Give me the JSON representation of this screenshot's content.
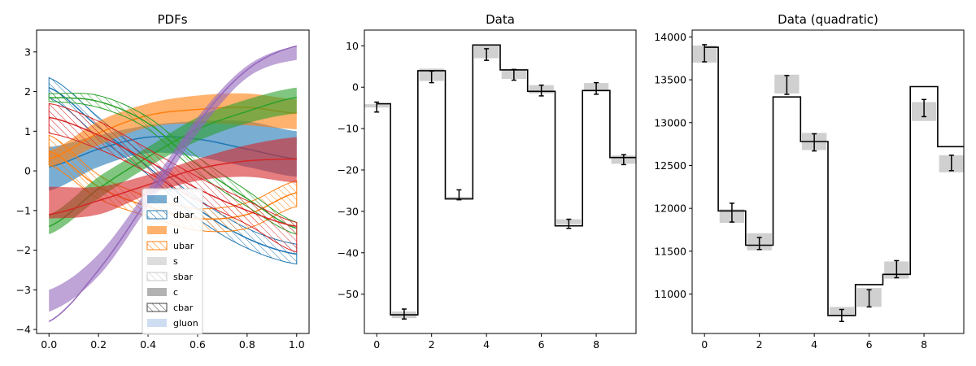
{
  "chart_data": [
    {
      "type": "area",
      "title": "PDFs",
      "xlabel": "",
      "ylabel": "",
      "xlim": [
        -0.05,
        1.05
      ],
      "ylim": [
        -4.1,
        3.55
      ],
      "xticks": [
        0.0,
        0.2,
        0.4,
        0.6,
        0.8,
        1.0
      ],
      "xtick_labels": [
        "0.0",
        "0.2",
        "0.4",
        "0.6",
        "0.8",
        "1.0"
      ],
      "yticks": [
        -4,
        -3,
        -2,
        -1,
        0,
        1,
        2,
        3
      ],
      "ytick_labels": [
        "−4",
        "−3",
        "−2",
        "−1",
        "0",
        "1",
        "2",
        "3"
      ],
      "legend_position": "bottom-center",
      "x": [
        0.0,
        0.2,
        0.4,
        0.6,
        0.8,
        1.0
      ],
      "series": [
        {
          "name": "d",
          "style": "filled",
          "color": "#1f77b4",
          "center": [
            0.1,
            0.55,
            0.85,
            0.8,
            0.55,
            0.3
          ],
          "upper": [
            0.6,
            0.9,
            1.15,
            1.25,
            1.25,
            1.0
          ],
          "lower": [
            -0.5,
            0.1,
            0.45,
            0.35,
            0.1,
            -0.15
          ]
        },
        {
          "name": "dbar",
          "style": "hatched",
          "color": "#1f77b4",
          "center": [
            2.1,
            1.1,
            0.1,
            -0.95,
            -1.7,
            -2.1
          ],
          "upper": [
            2.35,
            1.35,
            0.3,
            -0.7,
            -1.45,
            -1.85
          ],
          "lower": [
            1.85,
            0.85,
            -0.1,
            -1.2,
            -1.95,
            -2.35
          ]
        },
        {
          "name": "u",
          "style": "filled",
          "color": "#ff7f0e",
          "center": [
            0.3,
            0.95,
            1.4,
            1.55,
            1.6,
            1.45
          ],
          "upper": [
            0.5,
            1.25,
            1.7,
            1.9,
            1.95,
            1.8
          ],
          "lower": [
            0.1,
            0.65,
            1.1,
            1.2,
            1.15,
            1.05
          ]
        },
        {
          "name": "ubar",
          "style": "hatched",
          "color": "#ff7f0e",
          "center": [
            0.5,
            -0.4,
            -0.9,
            -1.2,
            -1.1,
            -0.55
          ],
          "upper": [
            0.9,
            -0.1,
            -0.65,
            -0.95,
            -0.8,
            -0.25
          ],
          "lower": [
            0.15,
            -0.7,
            -1.15,
            -1.5,
            -1.45,
            -0.9
          ]
        },
        {
          "name": "s",
          "style": "filled",
          "color": "#c7c7c7",
          "center": [],
          "upper": [],
          "lower": []
        },
        {
          "name": "sbar",
          "style": "hatched",
          "color": "#c7c7c7",
          "center": [],
          "upper": [],
          "lower": []
        },
        {
          "name": "c",
          "style": "filled",
          "color": "#7f7f7f",
          "center": [],
          "upper": [],
          "lower": []
        },
        {
          "name": "cbar",
          "style": "hatched",
          "color": "#404040",
          "center": [],
          "upper": [],
          "lower": []
        },
        {
          "name": "gluon",
          "style": "filled",
          "color": "#aec7e8",
          "center": [],
          "upper": [],
          "lower": []
        },
        {
          "name": "",
          "style": "filled",
          "color": "#2ca02c",
          "center": [
            -1.4,
            -0.45,
            0.35,
            1.05,
            1.5,
            1.85
          ],
          "upper": [
            -1.1,
            -0.15,
            0.6,
            1.35,
            1.8,
            2.1
          ],
          "lower": [
            -1.6,
            -0.7,
            0.1,
            0.75,
            1.2,
            1.45
          ]
        },
        {
          "name": "",
          "style": "hatched",
          "color": "#2ca02c",
          "center": [
            1.85,
            1.75,
            1.2,
            0.15,
            -0.7,
            -1.45
          ],
          "upper": [
            1.95,
            1.9,
            1.35,
            0.35,
            -0.5,
            -1.3
          ],
          "lower": [
            1.75,
            1.6,
            1.05,
            -0.05,
            -0.9,
            -1.6
          ]
        },
        {
          "name": "",
          "style": "filled",
          "color": "#d62728",
          "center": [
            -1.1,
            -0.75,
            -0.35,
            0.05,
            0.25,
            0.3
          ],
          "upper": [
            -0.4,
            -0.4,
            -0.1,
            0.3,
            0.65,
            0.85
          ],
          "lower": [
            -1.2,
            -1.1,
            -0.6,
            -0.25,
            -0.15,
            -0.3
          ]
        },
        {
          "name": "",
          "style": "hatched",
          "color": "#d62728",
          "center": [
            1.35,
            0.9,
            0.25,
            -0.45,
            -1.0,
            -1.4
          ],
          "upper": [
            1.7,
            1.25,
            0.55,
            -0.15,
            -0.75,
            -1.3
          ],
          "lower": [
            0.95,
            0.55,
            -0.05,
            -0.75,
            -1.35,
            -2.05
          ]
        },
        {
          "name": "",
          "style": "filled",
          "color": "#9467bd",
          "center": [
            -3.8,
            -2.5,
            -0.7,
            1.2,
            2.55,
            3.15
          ],
          "upper": [
            -3.0,
            -2.1,
            -0.45,
            1.35,
            2.65,
            3.15
          ],
          "lower": [
            -3.55,
            -2.65,
            -0.9,
            0.95,
            2.35,
            2.8
          ]
        }
      ]
    },
    {
      "type": "bar",
      "title": "Data",
      "xlabel": "",
      "ylabel": "",
      "xlim": [
        -0.45,
        9.45
      ],
      "ylim": [
        -59.5,
        13.8
      ],
      "xticks": [
        0,
        2,
        4,
        6,
        8
      ],
      "xtick_labels": [
        "0",
        "2",
        "4",
        "6",
        "8"
      ],
      "yticks": [
        -50,
        -40,
        -30,
        -20,
        -10,
        0,
        10
      ],
      "ytick_labels": [
        "−50",
        "−40",
        "−30",
        "−20",
        "−10",
        "0",
        "10"
      ],
      "x": [
        0,
        1,
        2,
        3,
        4,
        5,
        6,
        7,
        8,
        9
      ],
      "prediction": [
        -4,
        -55,
        4,
        -27,
        10.2,
        4.2,
        -1,
        -33.5,
        -0.8,
        -17
      ],
      "band_center": [
        -4.5,
        -55,
        3,
        -26.8,
        8.5,
        3,
        -0.5,
        -32.5,
        0,
        -17.5
      ],
      "band_halfwidth": [
        0.4,
        0.8,
        1.5,
        0.3,
        1.5,
        1.0,
        1.0,
        0.6,
        1.0,
        1.0
      ],
      "points": [
        -4.8,
        -54.8,
        2.5,
        -26,
        7.9,
        3,
        -0.8,
        -33,
        -0.3,
        -17.5
      ],
      "errors": [
        1.2,
        1.2,
        1.4,
        1.2,
        1.4,
        1.3,
        1.3,
        1.1,
        1.4,
        1.2
      ]
    },
    {
      "type": "bar",
      "title": "Data (quadratic)",
      "xlabel": "",
      "ylabel": "",
      "xlim": [
        -0.45,
        9.45
      ],
      "ylim": [
        10540,
        14080
      ],
      "xticks": [
        0,
        2,
        4,
        6,
        8
      ],
      "xtick_labels": [
        "0",
        "2",
        "4",
        "6",
        "8"
      ],
      "yticks": [
        11000,
        11500,
        12000,
        12500,
        13000,
        13500,
        14000
      ],
      "ytick_labels": [
        "11000",
        "11500",
        "12000",
        "12500",
        "13000",
        "13500",
        "14000"
      ],
      "x": [
        0,
        1,
        2,
        3,
        4,
        5,
        6,
        7,
        8,
        9
      ],
      "prediction": [
        13880,
        11970,
        11570,
        13300,
        12780,
        10750,
        11110,
        11230,
        13420,
        12720
      ],
      "band_center": [
        13800,
        11910,
        11610,
        13450,
        12780,
        10800,
        10960,
        11280,
        13130,
        12520
      ],
      "band_halfwidth": [
        100,
        80,
        100,
        110,
        100,
        50,
        110,
        100,
        110,
        100
      ],
      "points": [
        13810,
        11950,
        11590,
        13440,
        12770,
        10750,
        10950,
        11290,
        13170,
        12530
      ],
      "errors": [
        100,
        110,
        70,
        110,
        100,
        70,
        100,
        100,
        100,
        90
      ]
    }
  ]
}
